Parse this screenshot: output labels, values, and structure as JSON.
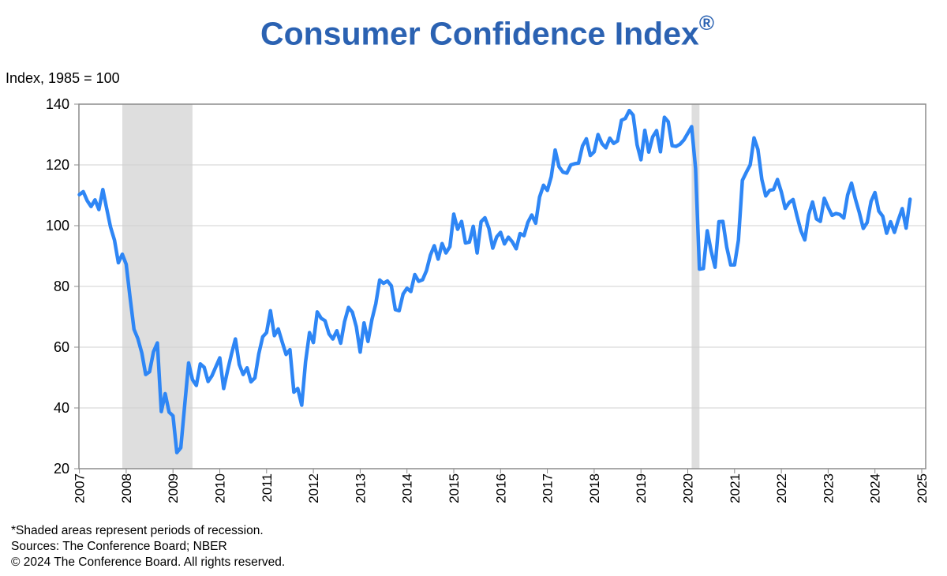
{
  "chart_data": {
    "type": "line",
    "title": "Consumer Confidence Index",
    "title_mark": "®",
    "ylabel": "Index, 1985 = 100",
    "xlabel": "",
    "ylim": [
      20,
      140
    ],
    "yticks": [
      20,
      40,
      60,
      80,
      100,
      120,
      140
    ],
    "xlim": [
      "2007-01",
      "2025-01"
    ],
    "xticks": [
      "2007",
      "2008",
      "2009",
      "2010",
      "2011",
      "2012",
      "2013",
      "2014",
      "2015",
      "2016",
      "2017",
      "2018",
      "2019",
      "2020",
      "2021",
      "2022",
      "2023",
      "2024",
      "2025"
    ],
    "grid": "horizontal",
    "line_color": "#2e86f5",
    "title_color": "#2b62b2",
    "recession_color": "#dedede",
    "recessions": [
      [
        "2007-12",
        "2009-06"
      ],
      [
        "2020-02",
        "2020-04"
      ]
    ],
    "start": "2007-01",
    "frequency": "monthly",
    "values": [
      110.2,
      111.2,
      108.2,
      106.3,
      108.5,
      105.3,
      111.9,
      105.6,
      99.5,
      95.2,
      87.8,
      90.6,
      87.3,
      76.4,
      65.9,
      62.8,
      58.1,
      51.0,
      51.9,
      58.5,
      61.4,
      38.8,
      44.7,
      38.6,
      37.4,
      25.3,
      26.9,
      40.8,
      54.8,
      49.3,
      47.4,
      54.5,
      53.4,
      48.7,
      50.6,
      53.6,
      56.5,
      46.4,
      52.3,
      57.7,
      62.7,
      54.3,
      51.0,
      53.2,
      48.6,
      49.9,
      57.8,
      63.4,
      64.8,
      72.0,
      63.8,
      66.0,
      61.7,
      57.6,
      59.2,
      45.2,
      46.4,
      40.9,
      55.2,
      64.8,
      61.5,
      71.6,
      69.5,
      68.7,
      64.4,
      62.7,
      65.4,
      61.3,
      68.4,
      73.1,
      71.5,
      66.7,
      58.4,
      68.0,
      61.9,
      69.0,
      74.3,
      82.1,
      81.0,
      81.8,
      80.2,
      72.4,
      72.0,
      77.5,
      79.4,
      78.3,
      83.9,
      81.7,
      82.2,
      85.2,
      90.3,
      93.4,
      89.0,
      94.1,
      91.0,
      93.1,
      103.8,
      98.8,
      101.4,
      94.3,
      94.6,
      99.8,
      91.0,
      101.3,
      102.6,
      99.1,
      92.6,
      96.3,
      97.8,
      94.0,
      96.2,
      94.7,
      92.4,
      97.4,
      96.7,
      101.1,
      103.5,
      100.8,
      109.4,
      113.3,
      111.6,
      116.1,
      124.9,
      119.4,
      117.6,
      117.3,
      120.0,
      120.4,
      120.6,
      126.2,
      128.6,
      123.1,
      124.3,
      130.0,
      127.0,
      125.6,
      128.8,
      127.1,
      127.9,
      134.7,
      135.3,
      137.9,
      136.4,
      126.6,
      121.7,
      131.4,
      124.2,
      129.2,
      131.3,
      124.3,
      135.7,
      134.2,
      126.3,
      126.1,
      126.8,
      128.2,
      130.4,
      132.6,
      118.8,
      85.7,
      85.9,
      98.3,
      91.7,
      86.3,
      101.3,
      101.4,
      92.9,
      87.1,
      87.1,
      95.2,
      114.9,
      117.5,
      120.0,
      128.9,
      125.1,
      115.2,
      109.8,
      111.6,
      111.9,
      115.2,
      111.1,
      105.7,
      107.6,
      108.6,
      103.2,
      98.4,
      95.3,
      103.6,
      107.8,
      102.2,
      101.4,
      109.0,
      106.0,
      103.4,
      104.0,
      103.7,
      102.5,
      110.1,
      114.0,
      108.7,
      104.3,
      99.1,
      101.0,
      108.0,
      110.9,
      104.8,
      103.1,
      97.5,
      101.3,
      97.8,
      101.9,
      105.6,
      99.2,
      108.7
    ]
  },
  "footnotes": {
    "recession_note": "*Shaded areas represent periods of recession.",
    "sources": "Sources: The Conference Board;  NBER",
    "copyright": "© 2024 The Conference Board. All rights reserved."
  }
}
